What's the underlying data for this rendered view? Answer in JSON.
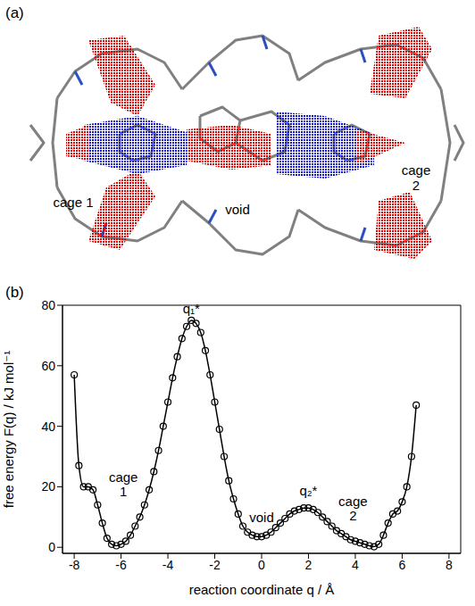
{
  "panel_a": {
    "label": "(a)",
    "labels": [
      "cage 1",
      "void",
      "cage 2"
    ]
  },
  "chart_data": {
    "label": "(b)",
    "type": "line",
    "x_label": "reaction coordinate q / Å",
    "y_label": "free energy F(q) / kJ mol⁻¹",
    "xlim": [
      -8.5,
      8.5
    ],
    "xticks": [
      -8,
      -6,
      -4,
      -2,
      0,
      2,
      4,
      6,
      8
    ],
    "ylim": [
      -2,
      80
    ],
    "yticks": [
      0,
      20,
      40,
      60,
      80
    ],
    "grid": false,
    "annotations": [
      "q₁*",
      "cage 1",
      "void",
      "q₂*",
      "cage 2"
    ],
    "color": "#000000",
    "marker": "circle",
    "line_style": "solid",
    "x": [
      -8,
      -7.8,
      -7.6,
      -7.4,
      -7.2,
      -7,
      -6.8,
      -6.6,
      -6.4,
      -6.2,
      -6,
      -5.8,
      -5.6,
      -5.4,
      -5.2,
      -5,
      -4.8,
      -4.6,
      -4.4,
      -4.2,
      -4,
      -3.8,
      -3.6,
      -3.4,
      -3.2,
      -3,
      -2.8,
      -2.6,
      -2.4,
      -2.2,
      -2,
      -1.8,
      -1.6,
      -1.4,
      -1.2,
      -1,
      -0.8,
      -0.6,
      -0.4,
      -0.2,
      0,
      0.2,
      0.4,
      0.6,
      0.8,
      1,
      1.2,
      1.4,
      1.6,
      1.8,
      2,
      2.2,
      2.4,
      2.6,
      2.8,
      3,
      3.2,
      3.4,
      3.6,
      3.8,
      4,
      4.2,
      4.4,
      4.6,
      4.8,
      5,
      5.2,
      5.4,
      5.6,
      5.8,
      6,
      6.2,
      6.4,
      6.6
    ],
    "values": [
      57,
      27,
      20,
      20,
      19,
      14,
      8,
      3,
      1,
      0.5,
      1,
      2,
      4,
      7,
      10,
      14,
      19,
      25,
      32,
      40,
      48,
      56,
      63,
      69,
      73,
      75,
      74,
      71,
      65,
      57,
      48,
      39,
      30,
      22,
      16,
      11,
      7,
      5,
      4,
      3.5,
      3.5,
      4,
      5,
      6.5,
      8,
      9.5,
      11,
      12,
      12.5,
      13,
      13,
      12.5,
      11.5,
      10,
      8.5,
      7,
      5.5,
      4.5,
      3.5,
      2.5,
      2,
      1.5,
      1,
      0.5,
      0.2,
      1,
      4,
      8,
      11,
      12,
      15,
      20,
      30,
      47
    ]
  }
}
